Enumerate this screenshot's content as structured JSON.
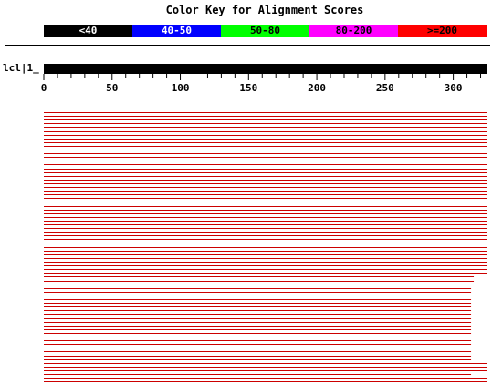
{
  "title": "Color Key for Alignment Scores",
  "color_key": [
    {
      "label": "<40",
      "color": "#000000",
      "text_color": "#ffffff"
    },
    {
      "label": "40-50",
      "color": "#0000ff",
      "text_color": "#ffffff"
    },
    {
      "label": "50-80",
      "color": "#00ff00",
      "text_color": "#000000"
    },
    {
      "label": "80-200",
      "color": "#ff00ff",
      "text_color": "#000000"
    },
    {
      "label": ">=200",
      "color": "#ff0000",
      "text_color": "#000000"
    }
  ],
  "query": {
    "label": "lcl|1_",
    "length": 325
  },
  "axis": {
    "max": 325,
    "major_ticks": [
      0,
      50,
      100,
      150,
      200,
      250,
      300
    ],
    "minor_step": 10
  },
  "hits": {
    "color": "#cc0000",
    "ends": [
      325,
      325,
      325,
      325,
      325,
      325,
      325,
      325,
      325,
      325,
      325,
      325,
      325,
      325,
      325,
      325,
      325,
      325,
      325,
      325,
      325,
      325,
      325,
      325,
      325,
      325,
      325,
      325,
      325,
      325,
      325,
      325,
      325,
      325,
      325,
      325,
      325,
      325,
      325,
      325,
      325,
      325,
      325,
      325,
      315,
      315,
      313,
      313,
      313,
      313,
      313,
      313,
      313,
      313,
      313,
      313,
      313,
      313,
      313,
      313,
      313,
      313,
      313,
      313,
      313,
      313,
      313,
      325,
      325,
      325,
      313,
      325,
      325,
      325,
      325,
      325,
      325,
      325,
      325
    ]
  }
}
